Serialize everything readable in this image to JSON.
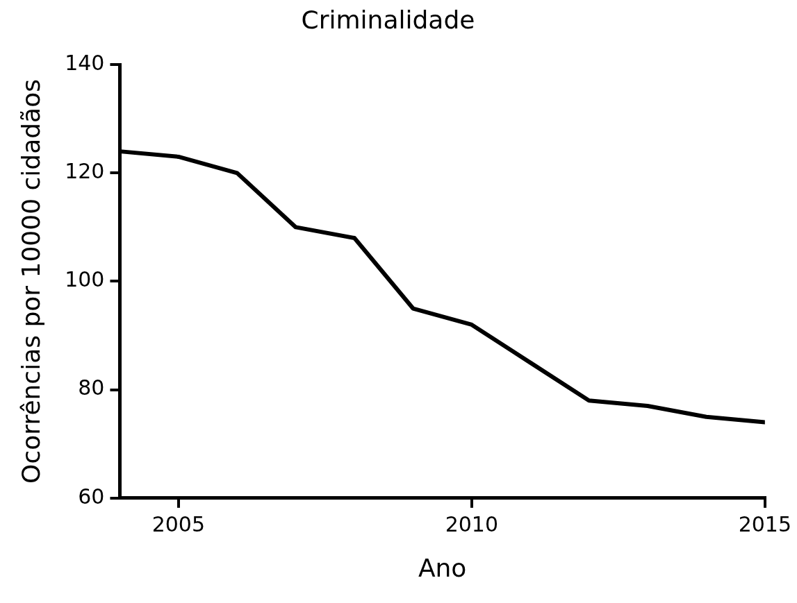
{
  "chart_data": {
    "type": "line",
    "title": "Criminalidade",
    "xlabel": "Ano",
    "ylabel": "Ocorrências por 10000 cidadãos",
    "x": [
      2004,
      2005,
      2006,
      2007,
      2008,
      2009,
      2010,
      2011,
      2012,
      2013,
      2014,
      2015
    ],
    "series": [
      {
        "color": "#000000",
        "values": [
          124,
          123,
          120,
          110,
          108,
          95,
          92,
          85,
          78,
          77,
          75,
          74
        ]
      }
    ],
    "xlim": [
      2004,
      2015
    ],
    "xticks": [
      2005,
      2010,
      2015
    ],
    "ylim": [
      60,
      140
    ],
    "yticks": [
      60,
      80,
      100,
      120,
      140
    ],
    "grid": false,
    "legend": false,
    "marker": "none",
    "line_style": "solid"
  }
}
